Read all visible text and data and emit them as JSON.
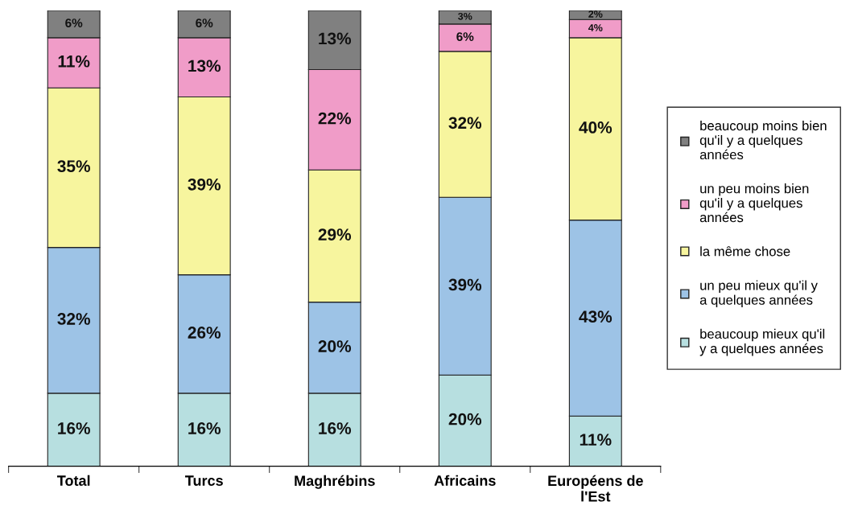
{
  "chart_data": {
    "type": "bar",
    "stacked": true,
    "legend": "right",
    "grid": false,
    "tick_labels": "x",
    "categories": [
      "Total",
      "Turcs",
      "Maghrébins",
      "Africains",
      "Européens de l'Est"
    ],
    "series": [
      {
        "name": "beaucoup mieux qu'il y a quelques années",
        "color": "#b7dfe0",
        "values": [
          16,
          16,
          16,
          20,
          11
        ],
        "value_labels": [
          "16%",
          "16%",
          "16%",
          "20%",
          "11%"
        ]
      },
      {
        "name": "un peu mieux qu'il y a quelques années",
        "color": "#9dc3e6",
        "values": [
          32,
          26,
          20,
          39,
          43
        ],
        "value_labels": [
          "32%",
          "26%",
          "20%",
          "39%",
          "43%"
        ]
      },
      {
        "name": "la même chose",
        "color": "#f7f59e",
        "values": [
          35,
          39,
          29,
          32,
          40
        ],
        "value_labels": [
          "35%",
          "39%",
          "29%",
          "32%",
          "40%"
        ]
      },
      {
        "name": "un peu moins bien qu'il y a quelques années",
        "color": "#f09cc8",
        "values": [
          11,
          13,
          22,
          6,
          4
        ],
        "value_labels": [
          "11%",
          "13%",
          "22%",
          "6%",
          "4%"
        ]
      },
      {
        "name": "beaucoup moins bien qu'il y a quelques années",
        "color": "#808080",
        "values": [
          6,
          6,
          13,
          3,
          2
        ],
        "value_labels": [
          "6%",
          "6%",
          "13%",
          "3%",
          "2%"
        ]
      }
    ]
  }
}
